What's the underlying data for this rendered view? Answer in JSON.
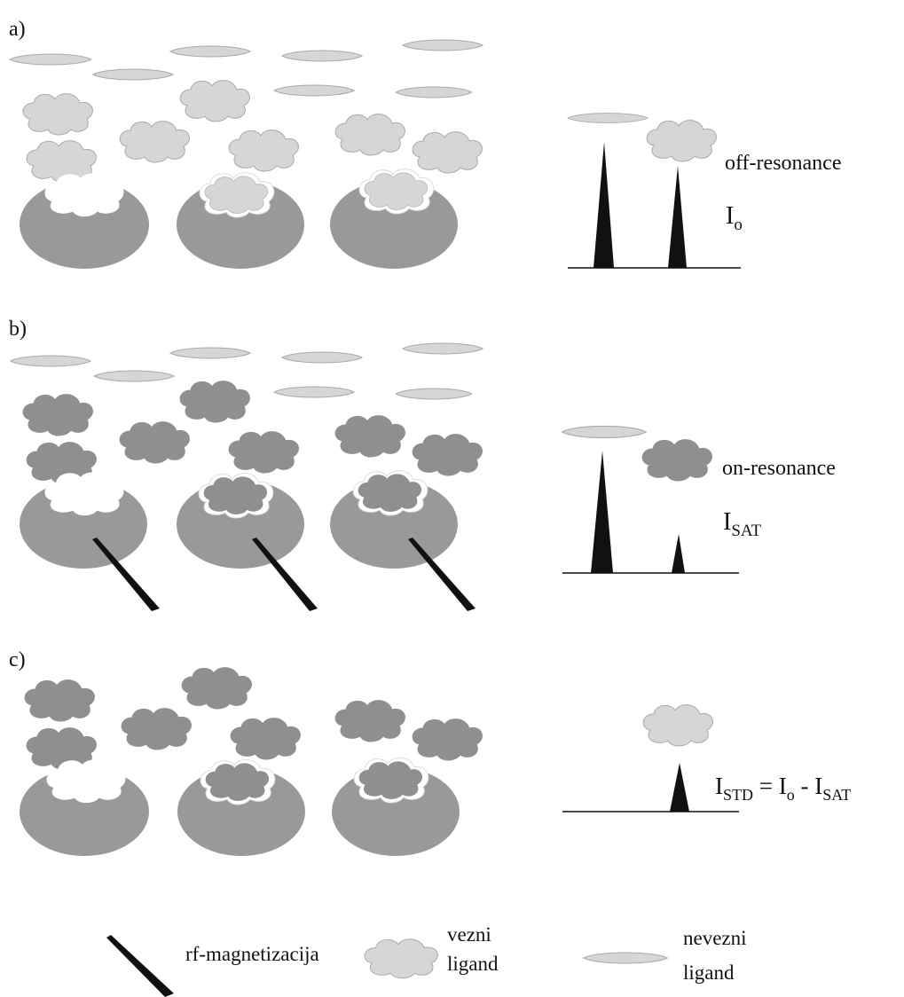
{
  "panels": [
    {
      "id": "a",
      "label": "a)",
      "state": "off-resonance",
      "intensity": "I",
      "intensity_sub": "o"
    },
    {
      "id": "b",
      "label": "b)",
      "state": "on-resonance",
      "intensity": "I",
      "intensity_sub": "SAT"
    },
    {
      "id": "c",
      "label": "c)",
      "formula_parts": [
        "I",
        "STD",
        " = I",
        "o",
        " - I",
        "SAT"
      ]
    }
  ],
  "legend": {
    "rf": "rf-magnetizacija",
    "bound_line1": "vezni",
    "bound_line2": "ligand",
    "unbound_line1": "nevezni",
    "unbound_line2": "ligand"
  },
  "colors": {
    "protein": "#999999",
    "cloud_light": "#d6d6d6",
    "cloud_dark": "#8f8f8f",
    "pocket": "#ffffff",
    "peak": "#111111",
    "rf_needle": "#111111",
    "outline": "#aaaaaa"
  }
}
